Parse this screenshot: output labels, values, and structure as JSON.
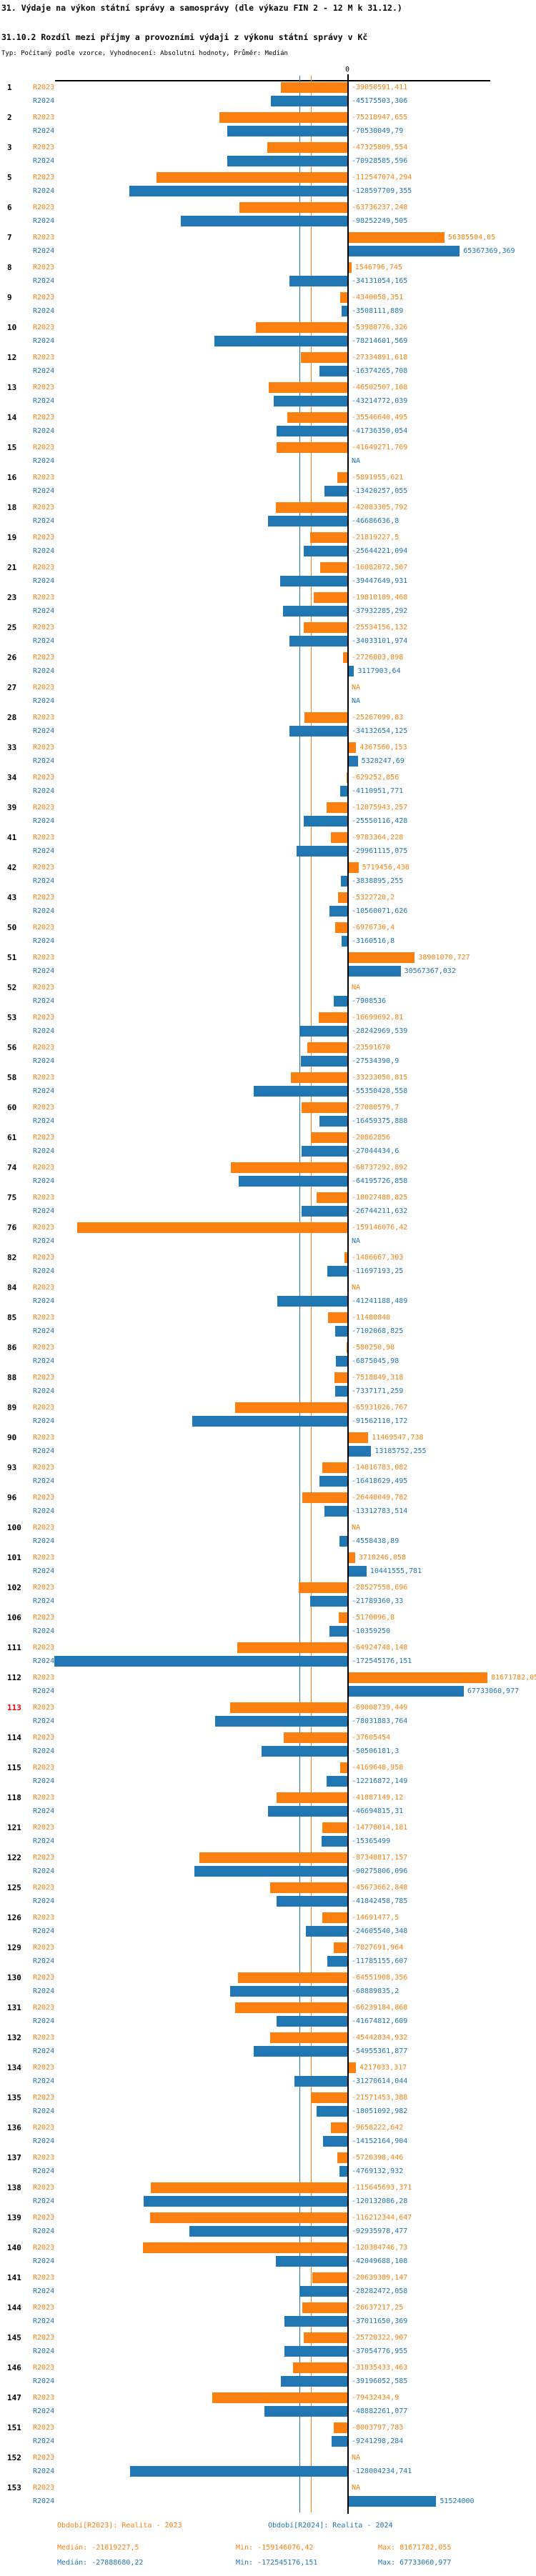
{
  "header": {
    "title1": "31. Výdaje na výkon státní správy a samosprávy (dle výkazu FIN 2 - 12 M k 31.12.)",
    "title2": "31.10.2 Rozdíl mezi příjmy a provozními výdaji z výkonu státní správy v Kč",
    "subtitle": "Typ: Počítaný podle vzorce, Vyhodnocení: Absolutní hodnoty, Průměr: Medián"
  },
  "axis": {
    "zero_label": "0"
  },
  "legend": {
    "r2023": "Období[R2023]: Realita - 2023",
    "r2024": "Období[R2024]: Realita - 2024"
  },
  "stats": {
    "r2023": {
      "median_label": "Medián:",
      "median": "-21819227,5",
      "min_label": "Min:",
      "min": "-159146076,42",
      "max_label": "Max:",
      "max": "81671782,055"
    },
    "r2024": {
      "median_label": "Medián:",
      "median": "-27888680,22",
      "min_label": "Min:",
      "min": "-172545176,151",
      "max_label": "Max:",
      "max": "67733060,977"
    }
  },
  "colors": {
    "orange": "#FC800F",
    "blue": "#2176B4",
    "highlight_red": "#FF0000",
    "axis_black": "#000000"
  },
  "chart_data": {
    "type": "bar",
    "orientation": "horizontal",
    "unit": "Kč",
    "title": "31.10.2 Rozdíl mezi příjmy a provozními výdaji z výkonu státní správy v Kč",
    "series": [
      "R2023",
      "R2024"
    ],
    "x_range_kc": [
      -172545176.151,
      81671782.055
    ],
    "median_r2023": -21819227.5,
    "median_r2024": -27888680.22,
    "grid": false,
    "legend_position": "bottom",
    "na_text": "NA",
    "rows": [
      {
        "n": "1",
        "r2023": "-39050591,411",
        "r2024": "-45175503,306"
      },
      {
        "n": "2",
        "r2023": "-75218947,655",
        "r2024": "-70530049,79"
      },
      {
        "n": "3",
        "r2023": "-47325809,554",
        "r2024": "-70928585,596"
      },
      {
        "n": "5",
        "r2023": "-112547074,294",
        "r2024": "-128597709,355"
      },
      {
        "n": "6",
        "r2023": "-63736237,248",
        "r2024": "-98252249,505"
      },
      {
        "n": "7",
        "r2023": "56385504,05",
        "r2024": "65367369,369"
      },
      {
        "n": "8",
        "r2023": "1546796,745",
        "r2024": "-34131054,165"
      },
      {
        "n": "9",
        "r2023": "-4340058,351",
        "r2024": "-3508111,889"
      },
      {
        "n": "10",
        "r2023": "-53988776,326",
        "r2024": "-78214601,569"
      },
      {
        "n": "12",
        "r2023": "-27334891,618",
        "r2024": "-16374265,708"
      },
      {
        "n": "13",
        "r2023": "-46502507,108",
        "r2024": "-43214772,039"
      },
      {
        "n": "14",
        "r2023": "-35546640,495",
        "r2024": "-41736350,054"
      },
      {
        "n": "15",
        "r2023": "-41649271,769",
        "r2024": "NA"
      },
      {
        "n": "16",
        "r2023": "-5891955,621",
        "r2024": "-13420257,055"
      },
      {
        "n": "18",
        "r2023": "-42083305,792",
        "r2024": "-46686636,8"
      },
      {
        "n": "19",
        "r2023": "-21819227,5",
        "r2024": "-25644221,094"
      },
      {
        "n": "21",
        "r2023": "-16082072,507",
        "r2024": "-39447649,931"
      },
      {
        "n": "23",
        "r2023": "-19810189,468",
        "r2024": "-37932285,292"
      },
      {
        "n": "25",
        "r2023": "-25534156,132",
        "r2024": "-34033101,974"
      },
      {
        "n": "26",
        "r2023": "-2726803,898",
        "r2024": "3117903,64"
      },
      {
        "n": "27",
        "r2023": "NA",
        "r2024": "NA"
      },
      {
        "n": "28",
        "r2023": "-25267099,83",
        "r2024": "-34132654,125"
      },
      {
        "n": "33",
        "r2023": "4367560,153",
        "r2024": "5328247,69"
      },
      {
        "n": "34",
        "r2023": "-629252,856",
        "r2024": "-4110951,771"
      },
      {
        "n": "39",
        "r2023": "-12075943,257",
        "r2024": "-25550116,428"
      },
      {
        "n": "41",
        "r2023": "-9783364,228",
        "r2024": "-29961115,075"
      },
      {
        "n": "42",
        "r2023": "5719456,438",
        "r2024": "-3838895,255"
      },
      {
        "n": "43",
        "r2023": "-5322720,2",
        "r2024": "-10560071,626"
      },
      {
        "n": "50",
        "r2023": "-6976730,4",
        "r2024": "-3160516,8"
      },
      {
        "n": "51",
        "r2023": "38901070,727",
        "r2024": "30567367,032"
      },
      {
        "n": "52",
        "r2023": "NA",
        "r2024": "-7908536"
      },
      {
        "n": "53",
        "r2023": "-16699692,81",
        "r2024": "-28242969,539"
      },
      {
        "n": "56",
        "r2023": "-23591670",
        "r2024": "-27534390,9"
      },
      {
        "n": "58",
        "r2023": "-33233050,815",
        "r2024": "-55350428,558"
      },
      {
        "n": "60",
        "r2023": "-27080579,7",
        "r2024": "-16459375,888"
      },
      {
        "n": "61",
        "r2023": "-20862856",
        "r2024": "-27044434,6"
      },
      {
        "n": "74",
        "r2023": "-68737292,892",
        "r2024": "-64195726,858"
      },
      {
        "n": "75",
        "r2023": "-18027488,825",
        "r2024": "-26744211,632"
      },
      {
        "n": "76",
        "r2023": "-159146076,42",
        "r2024": "NA"
      },
      {
        "n": "82",
        "r2023": "-1486667,303",
        "r2024": "-11697193,25"
      },
      {
        "n": "84",
        "r2023": "NA",
        "r2024": "-41241188,489"
      },
      {
        "n": "85",
        "r2023": "-11480840",
        "r2024": "-7102068,825"
      },
      {
        "n": "86",
        "r2023": "-580250,98",
        "r2024": "-6875045,98"
      },
      {
        "n": "88",
        "r2023": "-7518849,318",
        "r2024": "-7337171,259"
      },
      {
        "n": "89",
        "r2023": "-65931026,767",
        "r2024": "-91562110,172"
      },
      {
        "n": "90",
        "r2023": "11469547,738",
        "r2024": "13185752,255"
      },
      {
        "n": "93",
        "r2023": "-14816783,082",
        "r2024": "-16418629,495"
      },
      {
        "n": "96",
        "r2023": "-26448049,782",
        "r2024": "-13312783,514"
      },
      {
        "n": "100",
        "r2023": "NA",
        "r2024": "-4558438,89"
      },
      {
        "n": "101",
        "r2023": "3710246,058",
        "r2024": "10441555,781"
      },
      {
        "n": "102",
        "r2023": "-28527558,696",
        "r2024": "-21789360,33"
      },
      {
        "n": "106",
        "r2023": "-5170096,8",
        "r2024": "-10359250"
      },
      {
        "n": "111",
        "r2023": "-64924748,148",
        "r2024": "-172545176,151"
      },
      {
        "n": "112",
        "r2023": "81671782,055",
        "r2024": "67733060,977"
      },
      {
        "n": "113",
        "red": true,
        "r2023": "-69008739,449",
        "r2024": "-78031883,764"
      },
      {
        "n": "114",
        "r2023": "-37605454",
        "r2024": "-50506181,3"
      },
      {
        "n": "115",
        "r2023": "-4169648,958",
        "r2024": "-12216872,149"
      },
      {
        "n": "118",
        "r2023": "-41887149,12",
        "r2024": "-46694815,31"
      },
      {
        "n": "121",
        "r2023": "-14778014,181",
        "r2024": "-15365499"
      },
      {
        "n": "122",
        "r2023": "-87348817,157",
        "r2024": "-90275806,096"
      },
      {
        "n": "125",
        "r2023": "-45673662,848",
        "r2024": "-41842458,785"
      },
      {
        "n": "126",
        "r2023": "-14691477,5",
        "r2024": "-24605540,348"
      },
      {
        "n": "129",
        "r2023": "-7827691,964",
        "r2024": "-11785155,607"
      },
      {
        "n": "130",
        "r2023": "-64551908,356",
        "r2024": "-68889835,2"
      },
      {
        "n": "131",
        "r2023": "-66239184,868",
        "r2024": "-41674812,609"
      },
      {
        "n": "132",
        "r2023": "-45442834,932",
        "r2024": "-54955361,877"
      },
      {
        "n": "134",
        "r2023": "4217033,317",
        "r2024": "-31270614,044"
      },
      {
        "n": "135",
        "r2023": "-21571453,388",
        "r2024": "-18051092,982"
      },
      {
        "n": "136",
        "r2023": "-9658222,642",
        "r2024": "-14152164,904"
      },
      {
        "n": "137",
        "r2023": "-5720398,446",
        "r2024": "-4769132,932"
      },
      {
        "n": "138",
        "r2023": "-115645693,371",
        "r2024": "-120132086,28"
      },
      {
        "n": "139",
        "r2023": "-116212344,647",
        "r2024": "-92935978,477"
      },
      {
        "n": "140",
        "r2023": "-120384746,73",
        "r2024": "-42049688,108"
      },
      {
        "n": "141",
        "r2023": "-20639389,147",
        "r2024": "-28282472,058"
      },
      {
        "n": "144",
        "r2023": "-26637217,25",
        "r2024": "-37011650,369"
      },
      {
        "n": "145",
        "r2023": "-25720322,907",
        "r2024": "-37054776,955"
      },
      {
        "n": "146",
        "r2023": "-31835433,463",
        "r2024": "-39196052,585"
      },
      {
        "n": "147",
        "r2023": "-79432434,9",
        "r2024": "-48882261,077"
      },
      {
        "n": "151",
        "r2023": "-8003797,783",
        "r2024": "-9241298,284"
      },
      {
        "n": "152",
        "r2023": "NA",
        "r2024": "-128004234,741"
      },
      {
        "n": "153",
        "r2023": "NA",
        "r2024": "51524000"
      }
    ]
  }
}
